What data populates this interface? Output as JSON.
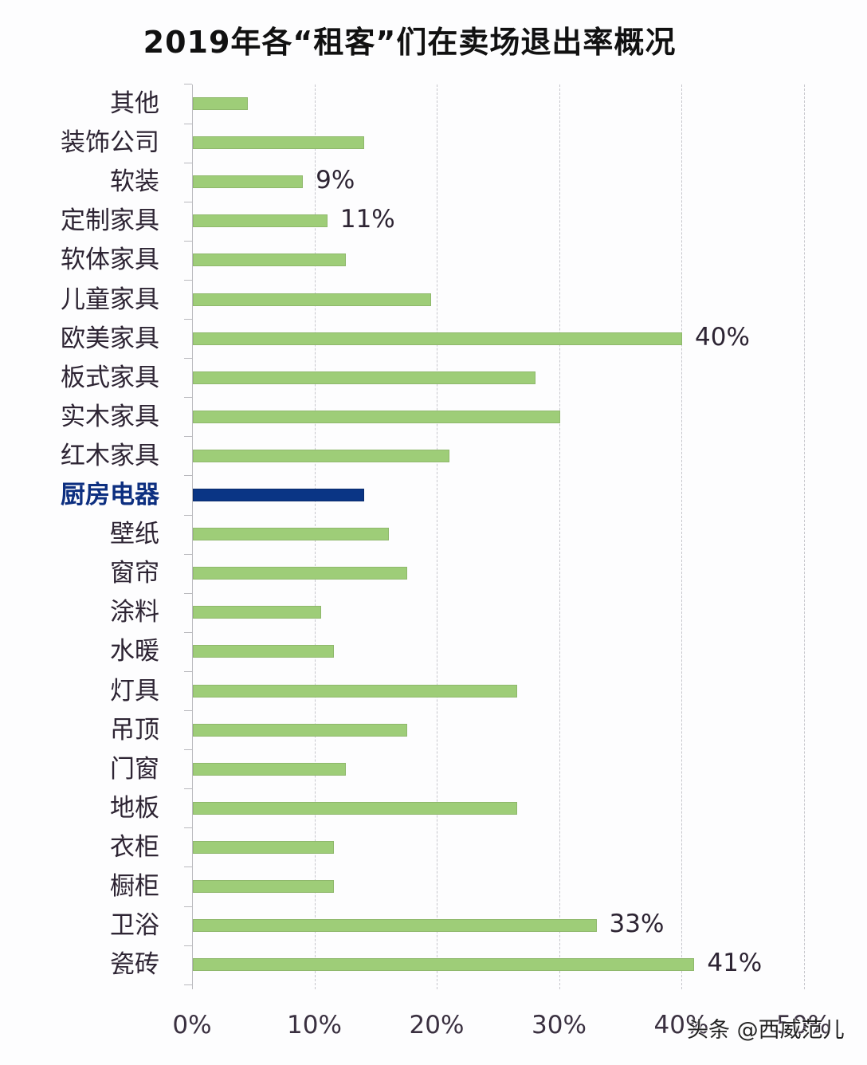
{
  "chart_data": {
    "type": "bar",
    "orientation": "horizontal",
    "title": "2019年各“租客”们在卖场退出率概况",
    "xlabel": "",
    "ylabel": "",
    "xlim": [
      0,
      50
    ],
    "x_ticks": [
      "0%",
      "10%",
      "20%",
      "30%",
      "40%",
      "50%"
    ],
    "grid": "vertical dashed",
    "legend": null,
    "categories": [
      "其他",
      "装饰公司",
      "软装",
      "定制家具",
      "软体家具",
      "儿童家具",
      "欧美家具",
      "板式家具",
      "实木家具",
      "红木家具",
      "厨房电器",
      "壁纸",
      "窗帘",
      "涂料",
      "水暖",
      "灯具",
      "吊顶",
      "门窗",
      "地板",
      "衣柜",
      "橱柜",
      "卫浴",
      "瓷砖"
    ],
    "values": [
      4.5,
      14,
      9,
      11,
      12.5,
      19.5,
      40,
      28,
      30,
      21,
      14,
      16,
      17.5,
      10.5,
      11.5,
      26.5,
      17.5,
      12.5,
      26.5,
      11.5,
      11.5,
      33,
      41
    ],
    "data_labels": {
      "软装": "9%",
      "定制家具": "11%",
      "欧美家具": "40%",
      "卫浴": "33%",
      "瓷砖": "41%"
    },
    "highlighted_category": "厨房电器",
    "colors": {
      "default_bar": "#9ecd78",
      "highlight_bar": "#0a3585",
      "highlight_label": "#0d2f80"
    }
  },
  "watermark": "头条 @西威范儿"
}
